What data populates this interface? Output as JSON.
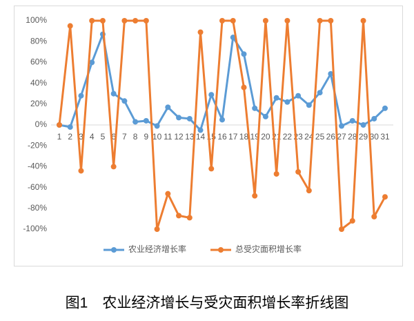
{
  "chart_data": {
    "type": "line",
    "title": "图1　农业经济增长与受灾面积增长率折线图",
    "categories": [
      "1",
      "2",
      "3",
      "4",
      "5",
      "6",
      "7",
      "8",
      "9",
      "10",
      "11",
      "12",
      "13",
      "14",
      "15",
      "16",
      "17",
      "18",
      "19",
      "20",
      "21",
      "22",
      "23",
      "24",
      "25",
      "26",
      "27",
      "28",
      "29",
      "30",
      "31"
    ],
    "series": [
      {
        "name": "农业经济增长率",
        "color": "#5b9bd5",
        "values": [
          0,
          -2,
          28,
          60,
          87,
          30,
          23,
          3,
          4,
          -1,
          17,
          7,
          6,
          -5,
          29,
          5,
          84,
          68,
          16,
          8,
          26,
          22,
          28,
          19,
          31,
          49,
          -1,
          4,
          0,
          6,
          16
        ]
      },
      {
        "name": "总受灾面积增长率",
        "color": "#ed7d31",
        "values": [
          0,
          95,
          -44,
          100,
          100,
          -40,
          100,
          100,
          100,
          -100,
          -66,
          -87,
          -89,
          89,
          -42,
          100,
          100,
          36,
          -68,
          100,
          -47,
          100,
          -45,
          -63,
          100,
          100,
          -100,
          -92,
          100,
          -88,
          -69
        ]
      }
    ],
    "ylim": [
      -100,
      100
    ],
    "yticks": [
      {
        "value": -100,
        "label": "-100%"
      },
      {
        "value": -80,
        "label": "-80%"
      },
      {
        "value": -60,
        "label": "-60%"
      },
      {
        "value": -40,
        "label": "-40%"
      },
      {
        "value": -20,
        "label": "-20%"
      },
      {
        "value": 0,
        "label": "0%"
      },
      {
        "value": 20,
        "label": "20%"
      },
      {
        "value": 40,
        "label": "40%"
      },
      {
        "value": 60,
        "label": "60%"
      },
      {
        "value": 80,
        "label": "80%"
      },
      {
        "value": 100,
        "label": "100%"
      }
    ],
    "legend": "bottom"
  }
}
